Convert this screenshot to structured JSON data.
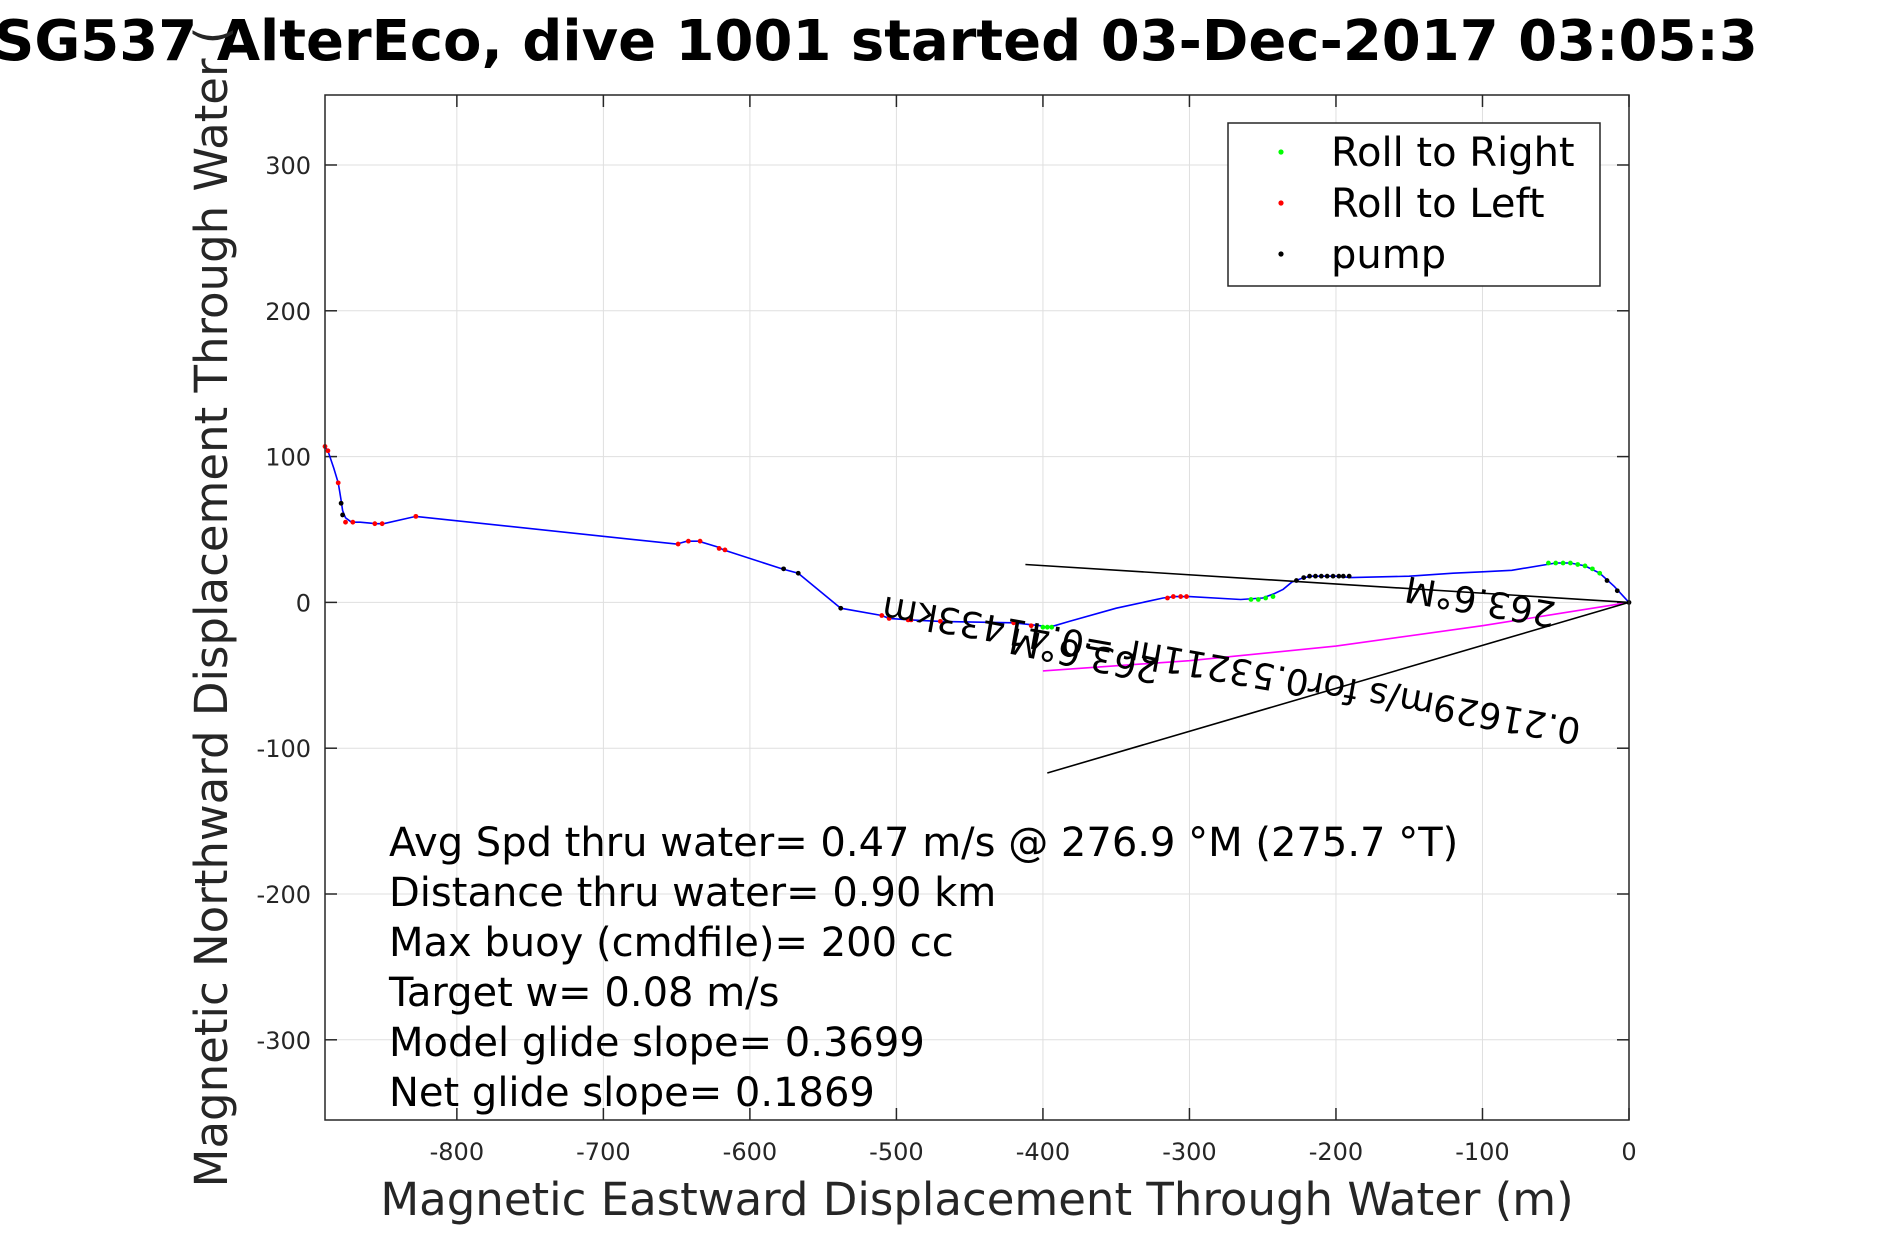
{
  "title": "SG537 AlterEco, dive 1001 started 03-Dec-2017 03:05:3",
  "chart_data": {
    "type": "line",
    "xlabel": "Magnetic Eastward Displacement Through Water (m)",
    "ylabel": "Magnetic Northward Displacement Through Water (",
    "xlim": [
      -890,
      0
    ],
    "ylim": [
      -355,
      348
    ],
    "xticks": [
      -800,
      -700,
      -600,
      -500,
      -400,
      -300,
      -200,
      -100,
      0
    ],
    "yticks": [
      -300,
      -200,
      -100,
      0,
      100,
      200,
      300
    ],
    "grid": true,
    "legend_position": "top-right",
    "legend": [
      {
        "label": "Roll to Right",
        "color": "#00ff00"
      },
      {
        "label": "Roll to Left",
        "color": "#ff0000"
      },
      {
        "label": "pump",
        "color": "#000000"
      }
    ],
    "series": [
      {
        "color": "#0000ff",
        "x": [
          -890,
          -888,
          -884,
          -881,
          -880,
          -879,
          -878,
          -876,
          -872,
          -866,
          -855,
          -850,
          -828,
          -650,
          -643,
          -635,
          -622,
          -618,
          -578,
          -567,
          -538,
          -510,
          -505,
          -490,
          -470,
          -420,
          -402,
          -398,
          -392,
          -382,
          -350,
          -318,
          -310,
          -300,
          -265,
          -250,
          -242,
          -236,
          -230,
          -222,
          -216,
          -200,
          -190,
          -150,
          -120,
          -100,
          -80,
          -50,
          -40,
          -30,
          -20,
          -10,
          0
        ],
        "y": [
          107,
          104,
          92,
          82,
          76,
          70,
          63,
          58,
          55,
          55,
          54,
          54,
          59,
          40,
          42,
          42,
          38,
          36,
          23,
          20,
          -4,
          -9,
          -11,
          -12,
          -13,
          -14,
          -16,
          -17,
          -16,
          -13,
          -4,
          3,
          4,
          4,
          2,
          3,
          6,
          9,
          14,
          17,
          18,
          18,
          17,
          18,
          20,
          21,
          22,
          27,
          27,
          25,
          20,
          11,
          0
        ]
      },
      {
        "color": "#ff00ff",
        "x": [
          0,
          -50,
          -100,
          -200,
          -300,
          -400
        ],
        "y": [
          0,
          -8,
          -16,
          -30,
          -40,
          -47
        ]
      },
      {
        "color": "#000000",
        "x": [
          -412,
          0,
          -397
        ],
        "y": [
          26,
          0,
          -117
        ]
      }
    ],
    "markers": {
      "roll_right": {
        "x": [
          -400,
          -397,
          -394,
          -258,
          -253,
          -248,
          -243,
          -55,
          -50,
          -45,
          -40,
          -35,
          -30,
          -25,
          -20
        ],
        "y": [
          -17,
          -17,
          -17,
          2,
          2,
          3,
          4,
          27,
          27,
          27,
          27,
          26,
          25,
          23,
          20
        ]
      },
      "roll_left": {
        "x": [
          -890,
          -888,
          -881,
          -876,
          -871,
          -856,
          -851,
          -828,
          -649,
          -642,
          -634,
          -621,
          -617,
          -510,
          -505,
          -492,
          -490,
          -470,
          -420,
          -408,
          -315,
          -311,
          -306,
          -302
        ],
        "y": [
          107,
          104,
          82,
          55,
          55,
          54,
          54,
          59,
          40,
          42,
          42,
          37,
          36,
          -9,
          -11,
          -12,
          -12,
          -13,
          -14,
          -16,
          3,
          4,
          4,
          4
        ]
      },
      "pump": {
        "x": [
          -879,
          -878,
          -577,
          -567,
          -538,
          -227,
          -222,
          -218,
          -214,
          -210,
          -206,
          -202,
          -198,
          -195,
          -191,
          -15,
          -8,
          0
        ],
        "y": [
          68,
          60,
          23,
          20,
          -4,
          15,
          17,
          18,
          18,
          18,
          18,
          18,
          18,
          18,
          18,
          15,
          8,
          0
        ]
      }
    },
    "annotations": [
      {
        "text": "0.21629m/s for0.53211hr =0.41433km",
        "x": -270,
        "y": -38
      },
      {
        "text": "263.6°M",
        "x": -370,
        "y": -28
      },
      {
        "text": "263.6°M",
        "x": -100,
        "y": 9
      }
    ],
    "stats": [
      "Avg Spd thru water=  0.47 m/s @ 276.9 °M (275.7 °T)",
      "Distance thru water=  0.90 km",
      "Max buoy (cmdfile)= 200 cc",
      "Target w= 0.08 m/s",
      "Model glide slope= 0.3699",
      "Net glide slope= 0.1869"
    ]
  }
}
